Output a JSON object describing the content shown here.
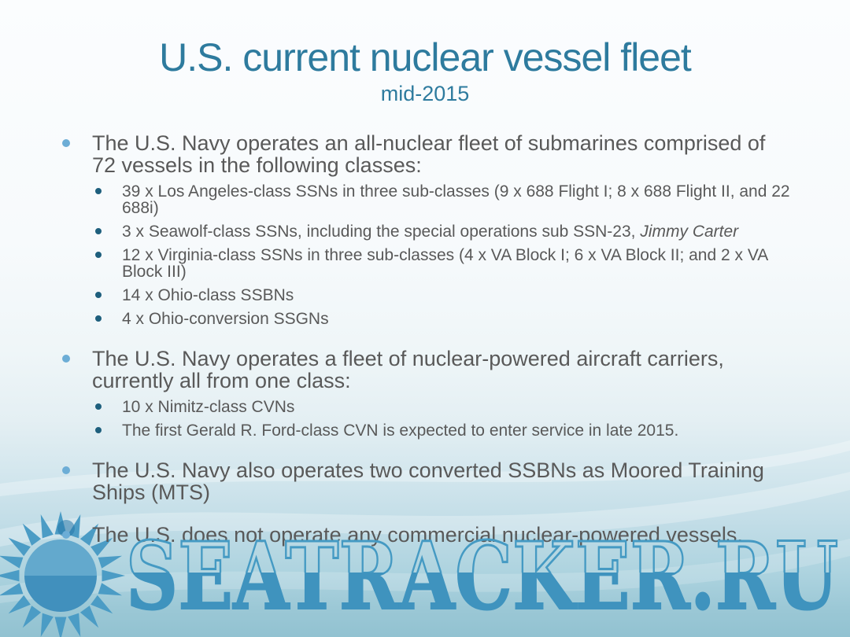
{
  "title": "U.S. current nuclear vessel fleet",
  "subtitle": "mid-2015",
  "bullets": {
    "b1": {
      "text": "The U.S. Navy operates an all-nuclear fleet of submarines comprised of 72 vessels in the following classes:",
      "subs": {
        "s1": "39 x Los Angeles-class SSNs in three sub-classes (9 x 688 Flight I; 8 x 688 Flight II, and 22 688i)",
        "s2_text": "3 x Seawolf-class SSNs, including the special operations sub SSN-23, ",
        "s2_italic": "Jimmy Carter",
        "s3": "12 x Virginia-class SSNs in three sub-classes (4 x VA Block I; 6 x VA Block II; and 2 x VA Block III)",
        "s4": "14 x Ohio-class SSBNs",
        "s5": "4 x Ohio-conversion SSGNs"
      }
    },
    "b2": {
      "text": "The U.S. Navy operates a fleet of nuclear-powered aircraft carriers, currently all from one class:",
      "subs": {
        "s1": "10 x Nimitz-class CVNs",
        "s2": "The first Gerald R. Ford-class CVN is expected to enter service in late 2015."
      }
    },
    "b3": {
      "text": "The U.S. Navy also operates two converted SSBNs as Moored Training Ships (MTS)"
    },
    "b4": {
      "text": "The U.S. does not operate any commercial nuclear-powered vessels."
    }
  },
  "watermark": {
    "site": "SEATRACKER.RU"
  },
  "colors": {
    "title_teal": "#2e7b9e",
    "body_text": "#595959",
    "level1_bullet": "#6cadd6",
    "level2_bullet": "#1e5f7d",
    "watermark_blue": "#3f93be",
    "sun_top": "#63a9cd",
    "sun_bottom": "#4190bd"
  }
}
